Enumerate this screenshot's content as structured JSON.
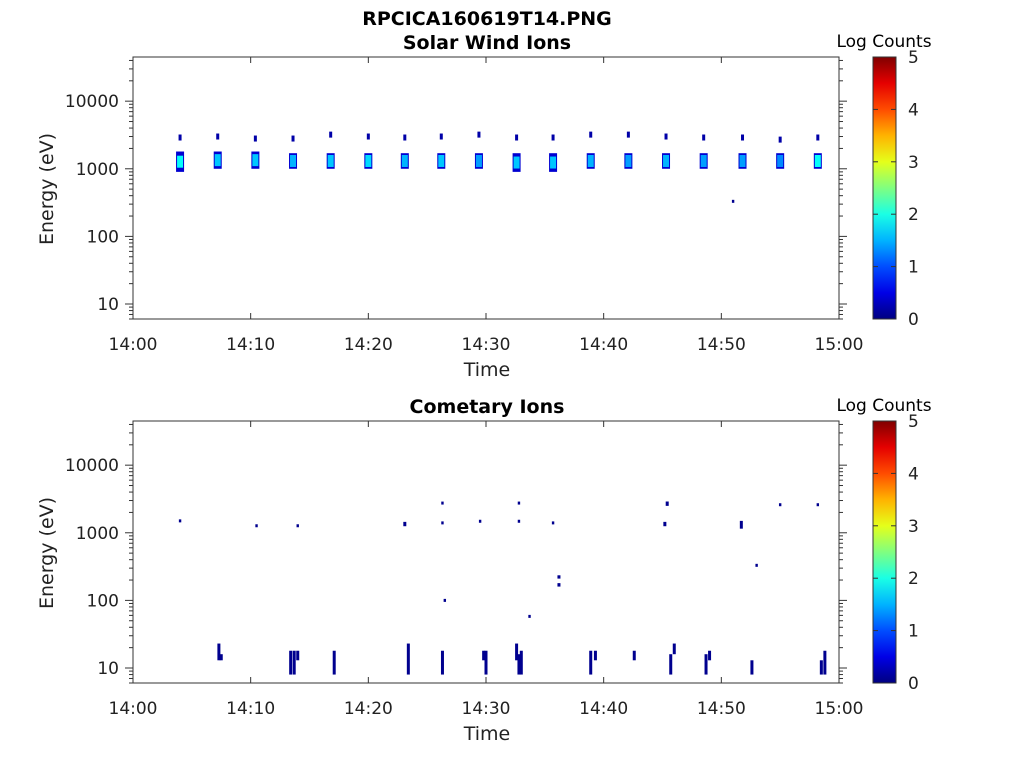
{
  "figure_title": "RPCICA160619T14.PNG",
  "chart_data": [
    {
      "type": "heatmap",
      "title": "Solar Wind Ions",
      "xlabel": "Time",
      "ylabel": "Energy (eV)",
      "x_ticks": [
        "14:00",
        "14:10",
        "14:20",
        "14:30",
        "14:40",
        "14:50",
        "15:00"
      ],
      "x_range": [
        "14:00",
        "15:00"
      ],
      "y_scale": "log",
      "y_ticks": [
        10,
        100,
        1000,
        10000
      ],
      "y_range": [
        6,
        45000
      ],
      "colorbar": {
        "title": "Log Counts",
        "range": [
          0,
          5
        ],
        "ticks": [
          0,
          1,
          2,
          3,
          4,
          5
        ],
        "colormap": "jet"
      },
      "blobs": [
        {
          "t": "14:04.0",
          "e_low": 900,
          "e_high": 1800,
          "e_top": 2900,
          "peak": 1.9
        },
        {
          "t": "14:07.2",
          "e_low": 1000,
          "e_high": 1800,
          "e_top": 3000,
          "peak": 1.6
        },
        {
          "t": "14:10.4",
          "e_low": 1000,
          "e_high": 1800,
          "e_top": 2800,
          "peak": 1.6
        },
        {
          "t": "14:13.6",
          "e_low": 1000,
          "e_high": 1700,
          "e_top": 2800,
          "peak": 1.5
        },
        {
          "t": "14:16.8",
          "e_low": 1000,
          "e_high": 1700,
          "e_top": 3200,
          "peak": 1.6
        },
        {
          "t": "14:20.0",
          "e_low": 1000,
          "e_high": 1700,
          "e_top": 3000,
          "peak": 1.7
        },
        {
          "t": "14:23.1",
          "e_low": 1000,
          "e_high": 1700,
          "e_top": 2900,
          "peak": 1.5
        },
        {
          "t": "14:26.2",
          "e_low": 1000,
          "e_high": 1700,
          "e_top": 3000,
          "peak": 1.6
        },
        {
          "t": "14:29.4",
          "e_low": 1000,
          "e_high": 1700,
          "e_top": 3200,
          "peak": 1.4
        },
        {
          "t": "14:32.6",
          "e_low": 900,
          "e_high": 1700,
          "e_top": 2900,
          "peak": 1.6
        },
        {
          "t": "14:35.7",
          "e_low": 900,
          "e_high": 1700,
          "e_top": 2900,
          "peak": 1.6
        },
        {
          "t": "14:38.9",
          "e_low": 1000,
          "e_high": 1700,
          "e_top": 3200,
          "peak": 1.5
        },
        {
          "t": "14:42.1",
          "e_low": 1000,
          "e_high": 1700,
          "e_top": 3200,
          "peak": 1.4
        },
        {
          "t": "14:45.3",
          "e_low": 1000,
          "e_high": 1700,
          "e_top": 3000,
          "peak": 1.5
        },
        {
          "t": "14:48.5",
          "e_low": 1000,
          "e_high": 1700,
          "e_top": 2900,
          "peak": 1.4
        },
        {
          "t": "14:51.8",
          "e_low": 1000,
          "e_high": 1700,
          "e_top": 2900,
          "peak": 1.4
        },
        {
          "t": "14:55.0",
          "e_low": 1000,
          "e_high": 1700,
          "e_top": 2700,
          "peak": 1.3
        },
        {
          "t": "14:58.2",
          "e_low": 1000,
          "e_high": 1700,
          "e_top": 2900,
          "peak": 1.9
        }
      ],
      "isolated_points": [
        {
          "t": "14:51.0",
          "e": 330,
          "value": 0.3
        }
      ]
    },
    {
      "type": "heatmap",
      "title": "Cometary Ions",
      "xlabel": "Time",
      "ylabel": "Energy (eV)",
      "x_ticks": [
        "14:00",
        "14:10",
        "14:20",
        "14:30",
        "14:40",
        "14:50",
        "15:00"
      ],
      "x_range": [
        "14:00",
        "15:00"
      ],
      "y_scale": "log",
      "y_ticks": [
        10,
        100,
        1000,
        10000
      ],
      "y_range": [
        6,
        45000
      ],
      "colorbar": {
        "title": "Log Counts",
        "range": [
          0,
          5
        ],
        "ticks": [
          0,
          1,
          2,
          3,
          4,
          5
        ],
        "colormap": "jet"
      },
      "bars": [
        {
          "t": "14:07.3",
          "e_low": 13,
          "e_high": 23
        },
        {
          "t": "14:07.5",
          "e_low": 13,
          "e_high": 16
        },
        {
          "t": "14:13.4",
          "e_low": 8,
          "e_high": 18
        },
        {
          "t": "14:13.7",
          "e_low": 8,
          "e_high": 18
        },
        {
          "t": "14:14.0",
          "e_low": 13,
          "e_high": 18
        },
        {
          "t": "14:17.1",
          "e_low": 8,
          "e_high": 18
        },
        {
          "t": "14:23.4",
          "e_low": 8,
          "e_high": 23
        },
        {
          "t": "14:26.3",
          "e_low": 8,
          "e_high": 18
        },
        {
          "t": "14:29.8",
          "e_low": 13,
          "e_high": 18
        },
        {
          "t": "14:30.0",
          "e_low": 8,
          "e_high": 18
        },
        {
          "t": "14:32.6",
          "e_low": 13,
          "e_high": 23
        },
        {
          "t": "14:32.8",
          "e_low": 8,
          "e_high": 16
        },
        {
          "t": "14:33.0",
          "e_low": 8,
          "e_high": 18
        },
        {
          "t": "14:38.9",
          "e_low": 8,
          "e_high": 18
        },
        {
          "t": "14:39.3",
          "e_low": 13,
          "e_high": 18
        },
        {
          "t": "14:42.6",
          "e_low": 13,
          "e_high": 18
        },
        {
          "t": "14:45.7",
          "e_low": 8,
          "e_high": 16
        },
        {
          "t": "14:46.0",
          "e_low": 16,
          "e_high": 23
        },
        {
          "t": "14:48.7",
          "e_low": 8,
          "e_high": 16
        },
        {
          "t": "14:49.0",
          "e_low": 13,
          "e_high": 18
        },
        {
          "t": "14:52.6",
          "e_low": 8,
          "e_high": 13
        },
        {
          "t": "14:58.5",
          "e_low": 8,
          "e_high": 13
        },
        {
          "t": "14:58.8",
          "e_low": 8,
          "e_high": 18
        },
        {
          "t": "14:23.1",
          "e_low": 1250,
          "e_high": 1450
        },
        {
          "t": "14:45.2",
          "e_low": 1250,
          "e_high": 1450
        },
        {
          "t": "14:51.7",
          "e_low": 1150,
          "e_high": 1500
        },
        {
          "t": "14:45.4",
          "e_low": 2500,
          "e_high": 2900
        },
        {
          "t": "14:36.2",
          "e_low": 160,
          "e_high": 180
        },
        {
          "t": "14:36.2",
          "e_low": 210,
          "e_high": 235
        }
      ],
      "isolated_points": [
        {
          "t": "14:04.0",
          "e": 1500
        },
        {
          "t": "14:10.5",
          "e": 1270
        },
        {
          "t": "14:14.0",
          "e": 1270
        },
        {
          "t": "14:26.3",
          "e": 2750
        },
        {
          "t": "14:26.3",
          "e": 1400
        },
        {
          "t": "14:26.5",
          "e": 100
        },
        {
          "t": "14:29.5",
          "e": 1480
        },
        {
          "t": "14:32.8",
          "e": 2750
        },
        {
          "t": "14:32.8",
          "e": 1480
        },
        {
          "t": "14:33.7",
          "e": 58
        },
        {
          "t": "14:35.7",
          "e": 1400
        },
        {
          "t": "14:53.0",
          "e": 330
        },
        {
          "t": "14:55.0",
          "e": 2600
        },
        {
          "t": "14:58.2",
          "e": 2600
        }
      ]
    }
  ]
}
